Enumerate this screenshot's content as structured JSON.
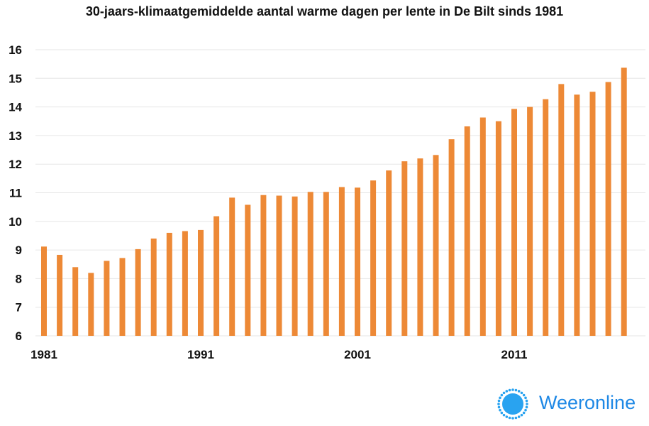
{
  "chart_data": {
    "type": "bar",
    "title": "30-jaars-klimaatgemiddelde aantal warme dagen per lente in De Bilt sinds 1981",
    "xlabel": "",
    "ylabel": "",
    "x_tick_labels": [
      "1981",
      "1991",
      "2001",
      "2011"
    ],
    "y_ticks": [
      6,
      7,
      8,
      9,
      10,
      11,
      12,
      13,
      14,
      15,
      16
    ],
    "ylim": [
      6,
      16
    ],
    "grid": true,
    "bar_color": "#ED8936",
    "categories": [
      1981,
      1982,
      1983,
      1984,
      1985,
      1986,
      1987,
      1988,
      1989,
      1990,
      1991,
      1992,
      1993,
      1994,
      1995,
      1996,
      1997,
      1998,
      1999,
      2000,
      2001,
      2002,
      2003,
      2004,
      2005,
      2006,
      2007,
      2008,
      2009,
      2010,
      2011,
      2012,
      2013,
      2014,
      2015,
      2016,
      2017,
      2018
    ],
    "values": [
      9.12,
      8.83,
      8.4,
      8.2,
      8.62,
      8.72,
      9.03,
      9.4,
      9.6,
      9.66,
      9.7,
      10.18,
      10.83,
      10.58,
      10.92,
      10.9,
      10.87,
      11.03,
      11.03,
      11.2,
      11.18,
      11.43,
      11.78,
      12.1,
      12.2,
      12.32,
      12.87,
      13.32,
      13.63,
      13.5,
      13.93,
      14.0,
      14.27,
      14.8,
      14.43,
      14.53,
      14.87,
      15.37
    ]
  },
  "logo": {
    "text": "Weeronline",
    "text_color": "#1E88E5",
    "sun_color": "#29A3F0"
  }
}
